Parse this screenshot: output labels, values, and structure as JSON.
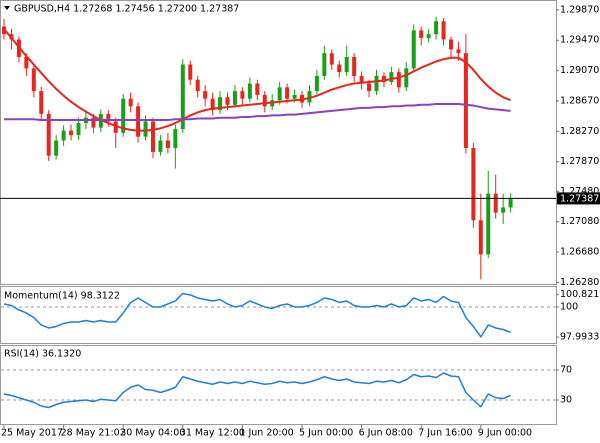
{
  "chart_data": [
    {
      "type": "candlestick",
      "title": "GBPUSD,H4  1.27268 1.27456 1.27200 1.27387",
      "categories": [
        "25 May 2017",
        null,
        null,
        null,
        null,
        null,
        null,
        null,
        "28 May 21:02",
        null,
        null,
        null,
        null,
        null,
        null,
        null,
        "30 May 04:00",
        null,
        null,
        null,
        null,
        null,
        null,
        null,
        "31 May 12:00",
        null,
        null,
        null,
        null,
        null,
        null,
        null,
        "1 Jun 20:00",
        null,
        null,
        null,
        null,
        null,
        null,
        null,
        "5 Jun 00:00",
        null,
        null,
        null,
        null,
        null,
        null,
        null,
        "6 Jun 08:00",
        null,
        null,
        null,
        null,
        null,
        null,
        null,
        "7 Jun 16:00",
        null,
        null,
        null,
        null,
        null,
        null,
        null,
        "9 Jun 00:00",
        null,
        null,
        null,
        null
      ],
      "open": [
        1.2965,
        1.2955,
        1.2948,
        1.2925,
        1.291,
        1.288,
        1.285,
        1.2795,
        1.2815,
        1.2828,
        1.2822,
        1.2838,
        1.2845,
        1.2832,
        1.285,
        1.284,
        1.2825,
        1.287,
        1.286,
        1.282,
        1.284,
        1.28,
        1.2815,
        1.2805,
        1.283,
        1.2915,
        1.2895,
        1.288,
        1.287,
        1.2855,
        1.2872,
        1.2862,
        1.288,
        1.287,
        1.289,
        1.2875,
        1.286,
        1.2868,
        1.2885,
        1.287,
        1.2875,
        1.2865,
        1.288,
        1.29,
        1.293,
        1.2915,
        1.2905,
        1.2925,
        1.29,
        1.289,
        1.288,
        1.29,
        1.2892,
        1.2905,
        1.2885,
        1.291,
        1.296,
        1.295,
        1.2955,
        1.2972,
        1.2948,
        1.2935,
        1.293,
        1.2805,
        1.271,
        1.2665,
        1.2745,
        1.272,
        1.27268
      ],
      "high": [
        1.2975,
        1.2962,
        1.2952,
        1.293,
        1.2915,
        1.2886,
        1.2855,
        1.2822,
        1.2835,
        1.2836,
        1.2845,
        1.2852,
        1.285,
        1.2856,
        1.2855,
        1.2845,
        1.2876,
        1.2878,
        1.2865,
        1.2848,
        1.2845,
        1.2822,
        1.2825,
        1.2836,
        1.2922,
        1.292,
        1.29,
        1.2888,
        1.2878,
        1.288,
        1.2878,
        1.2888,
        1.2885,
        1.2898,
        1.2895,
        1.288,
        1.2876,
        1.2892,
        1.289,
        1.2882,
        1.288,
        1.2888,
        1.2908,
        1.294,
        1.2935,
        1.292,
        1.294,
        1.293,
        1.2906,
        1.2895,
        1.2908,
        1.2905,
        1.2912,
        1.291,
        1.2918,
        1.2968,
        1.2965,
        1.2962,
        1.2978,
        1.2976,
        1.2952,
        1.2945,
        1.2955,
        1.2812,
        1.2745,
        1.2775,
        1.277,
        1.2745,
        1.27456
      ],
      "low": [
        1.2948,
        1.2935,
        1.2918,
        1.29,
        1.2872,
        1.2842,
        1.2788,
        1.279,
        1.2808,
        1.2815,
        1.2816,
        1.283,
        1.2825,
        1.2826,
        1.2833,
        1.2805,
        1.282,
        1.2852,
        1.2812,
        1.2815,
        1.2792,
        1.2795,
        1.2798,
        1.2778,
        1.2825,
        1.2888,
        1.2872,
        1.286,
        1.2848,
        1.285,
        1.2855,
        1.2858,
        1.2862,
        1.2865,
        1.2868,
        1.2852,
        1.2855,
        1.2862,
        1.2864,
        1.2865,
        1.2858,
        1.286,
        1.2876,
        1.2895,
        1.2908,
        1.2898,
        1.29,
        1.2892,
        1.2882,
        1.2872,
        1.2875,
        1.2885,
        1.2888,
        1.2878,
        1.288,
        1.2905,
        1.294,
        1.2944,
        1.2948,
        1.294,
        1.2925,
        1.292,
        1.2798,
        1.27,
        1.2632,
        1.266,
        1.2712,
        1.2705,
        1.272
      ],
      "close": [
        1.2955,
        1.2948,
        1.2925,
        1.291,
        1.288,
        1.285,
        1.2795,
        1.2815,
        1.2828,
        1.2822,
        1.2838,
        1.2845,
        1.2832,
        1.285,
        1.284,
        1.2825,
        1.287,
        1.286,
        1.282,
        1.284,
        1.28,
        1.2815,
        1.2805,
        1.283,
        1.2915,
        1.2895,
        1.288,
        1.287,
        1.2855,
        1.2872,
        1.2862,
        1.288,
        1.287,
        1.289,
        1.2875,
        1.286,
        1.2868,
        1.2885,
        1.287,
        1.2875,
        1.2865,
        1.288,
        1.29,
        1.293,
        1.2915,
        1.2905,
        1.2925,
        1.29,
        1.289,
        1.288,
        1.29,
        1.2892,
        1.2905,
        1.2885,
        1.291,
        1.296,
        1.295,
        1.2955,
        1.2972,
        1.2948,
        1.2935,
        1.293,
        1.2805,
        1.271,
        1.2665,
        1.2745,
        1.272,
        1.27268,
        1.27387
      ],
      "up_color": "#18a018",
      "down_color": "#e8261c",
      "lines": [
        {
          "color": "#e8261c",
          "values": [
            1.2962,
            1.295,
            1.2938,
            1.2926,
            1.2915,
            1.2904,
            1.2893,
            1.2883,
            1.2874,
            1.2866,
            1.2859,
            1.2853,
            1.2847,
            1.2842,
            1.2838,
            1.2834,
            1.2831,
            1.2829,
            1.2828,
            1.2828,
            1.2829,
            1.2831,
            1.2834,
            1.2838,
            1.2843,
            1.2848,
            1.2852,
            1.2855,
            1.2857,
            1.2858,
            1.2859,
            1.286,
            1.2861,
            1.2862,
            1.2863,
            1.2864,
            1.2865,
            1.2866,
            1.2867,
            1.2868,
            1.2869,
            1.2871,
            1.2874,
            1.2878,
            1.2882,
            1.2885,
            1.2888,
            1.289,
            1.2891,
            1.2892,
            1.2893,
            1.2894,
            1.2896,
            1.2898,
            1.2901,
            1.2906,
            1.2911,
            1.2915,
            1.2919,
            1.2922,
            1.2924,
            1.2924,
            1.2918,
            1.2908,
            1.2896,
            1.2886,
            1.2878,
            1.2872,
            1.2868
          ]
        },
        {
          "color": "#8e3fbf",
          "values": [
            1.2843,
            1.2843,
            1.2843,
            1.2843,
            1.2843,
            1.2842,
            1.2842,
            1.2842,
            1.2842,
            1.2842,
            1.2842,
            1.2842,
            1.2842,
            1.2842,
            1.2842,
            1.2842,
            1.2842,
            1.2842,
            1.2842,
            1.2842,
            1.2842,
            1.2842,
            1.2842,
            1.2843,
            1.2843,
            1.2843,
            1.2844,
            1.2844,
            1.2844,
            1.2845,
            1.2845,
            1.2845,
            1.2846,
            1.2846,
            1.2847,
            1.2847,
            1.2848,
            1.2848,
            1.2849,
            1.2849,
            1.285,
            1.2851,
            1.2852,
            1.2853,
            1.2854,
            1.2855,
            1.2856,
            1.2857,
            1.2858,
            1.2858,
            1.2859,
            1.2859,
            1.286,
            1.286,
            1.2861,
            1.2861,
            1.2862,
            1.2862,
            1.2863,
            1.2863,
            1.2863,
            1.2863,
            1.2862,
            1.2861,
            1.2859,
            1.2857,
            1.2856,
            1.2855,
            1.2854
          ]
        }
      ],
      "ylim": [
        1.2626,
        1.3
      ],
      "yticks": [
        {
          "value": 1.2987,
          "label": "1.29870"
        },
        {
          "value": 1.2947,
          "label": "1.29470"
        },
        {
          "value": 1.2907,
          "label": "1.29070"
        },
        {
          "value": 1.2867,
          "label": "1.28670"
        },
        {
          "value": 1.2827,
          "label": "1.28270"
        },
        {
          "value": 1.2787,
          "label": "1.27870"
        },
        {
          "value": 1.2748,
          "label": "1.27480"
        },
        {
          "value": 1.2708,
          "label": "1.27080"
        },
        {
          "value": 1.2668,
          "label": "1.26680"
        },
        {
          "value": 1.2628,
          "label": "1.26280"
        }
      ],
      "last_price": 1.27387
    },
    {
      "type": "line",
      "title": "Momentum(14) 98.3122",
      "series": [
        {
          "color": "#1e7fd8",
          "values": [
            100.2,
            100.1,
            99.8,
            99.6,
            99.3,
            98.8,
            98.6,
            98.7,
            98.9,
            99.0,
            99.0,
            99.1,
            99.0,
            99.1,
            99.0,
            99.0,
            99.6,
            100.3,
            100.6,
            100.3,
            100.0,
            100.0,
            100.2,
            100.4,
            100.9,
            100.8,
            100.6,
            100.5,
            100.4,
            100.5,
            100.2,
            100.0,
            100.1,
            100.4,
            100.2,
            100.0,
            99.9,
            100.1,
            100.2,
            100.0,
            100.0,
            100.1,
            100.3,
            100.6,
            100.5,
            100.3,
            100.4,
            100.1,
            100.0,
            100.0,
            100.1,
            100.0,
            100.2,
            100.0,
            100.1,
            100.6,
            100.4,
            100.5,
            100.3,
            100.7,
            100.4,
            100.3,
            99.3,
            98.7,
            98.0,
            98.8,
            98.6,
            98.5,
            98.3122
          ]
        }
      ],
      "ylim": [
        97.6,
        101.33
      ],
      "yticks": [
        100.8217,
        100,
        97.9933
      ],
      "levels": [
        100
      ]
    },
    {
      "type": "line",
      "title": "RSI(14) 36.1320",
      "series": [
        {
          "color": "#1e7fd8",
          "values": [
            38,
            36,
            33,
            30,
            27,
            22,
            20,
            24,
            27,
            28,
            29,
            30,
            28,
            31,
            30,
            29,
            40,
            47,
            50,
            44,
            43,
            40,
            43,
            47,
            61,
            58,
            55,
            53,
            51,
            54,
            52,
            54,
            52,
            55,
            53,
            51,
            52,
            55,
            53,
            54,
            52,
            54,
            57,
            61,
            58,
            56,
            58,
            54,
            53,
            52,
            55,
            54,
            56,
            53,
            57,
            64,
            61,
            62,
            60,
            66,
            62,
            61,
            40,
            30,
            21,
            38,
            33,
            32,
            36.132
          ]
        }
      ],
      "ylim": [
        0,
        100
      ],
      "yticks": [
        70,
        30
      ],
      "levels": [
        70,
        30
      ]
    }
  ]
}
